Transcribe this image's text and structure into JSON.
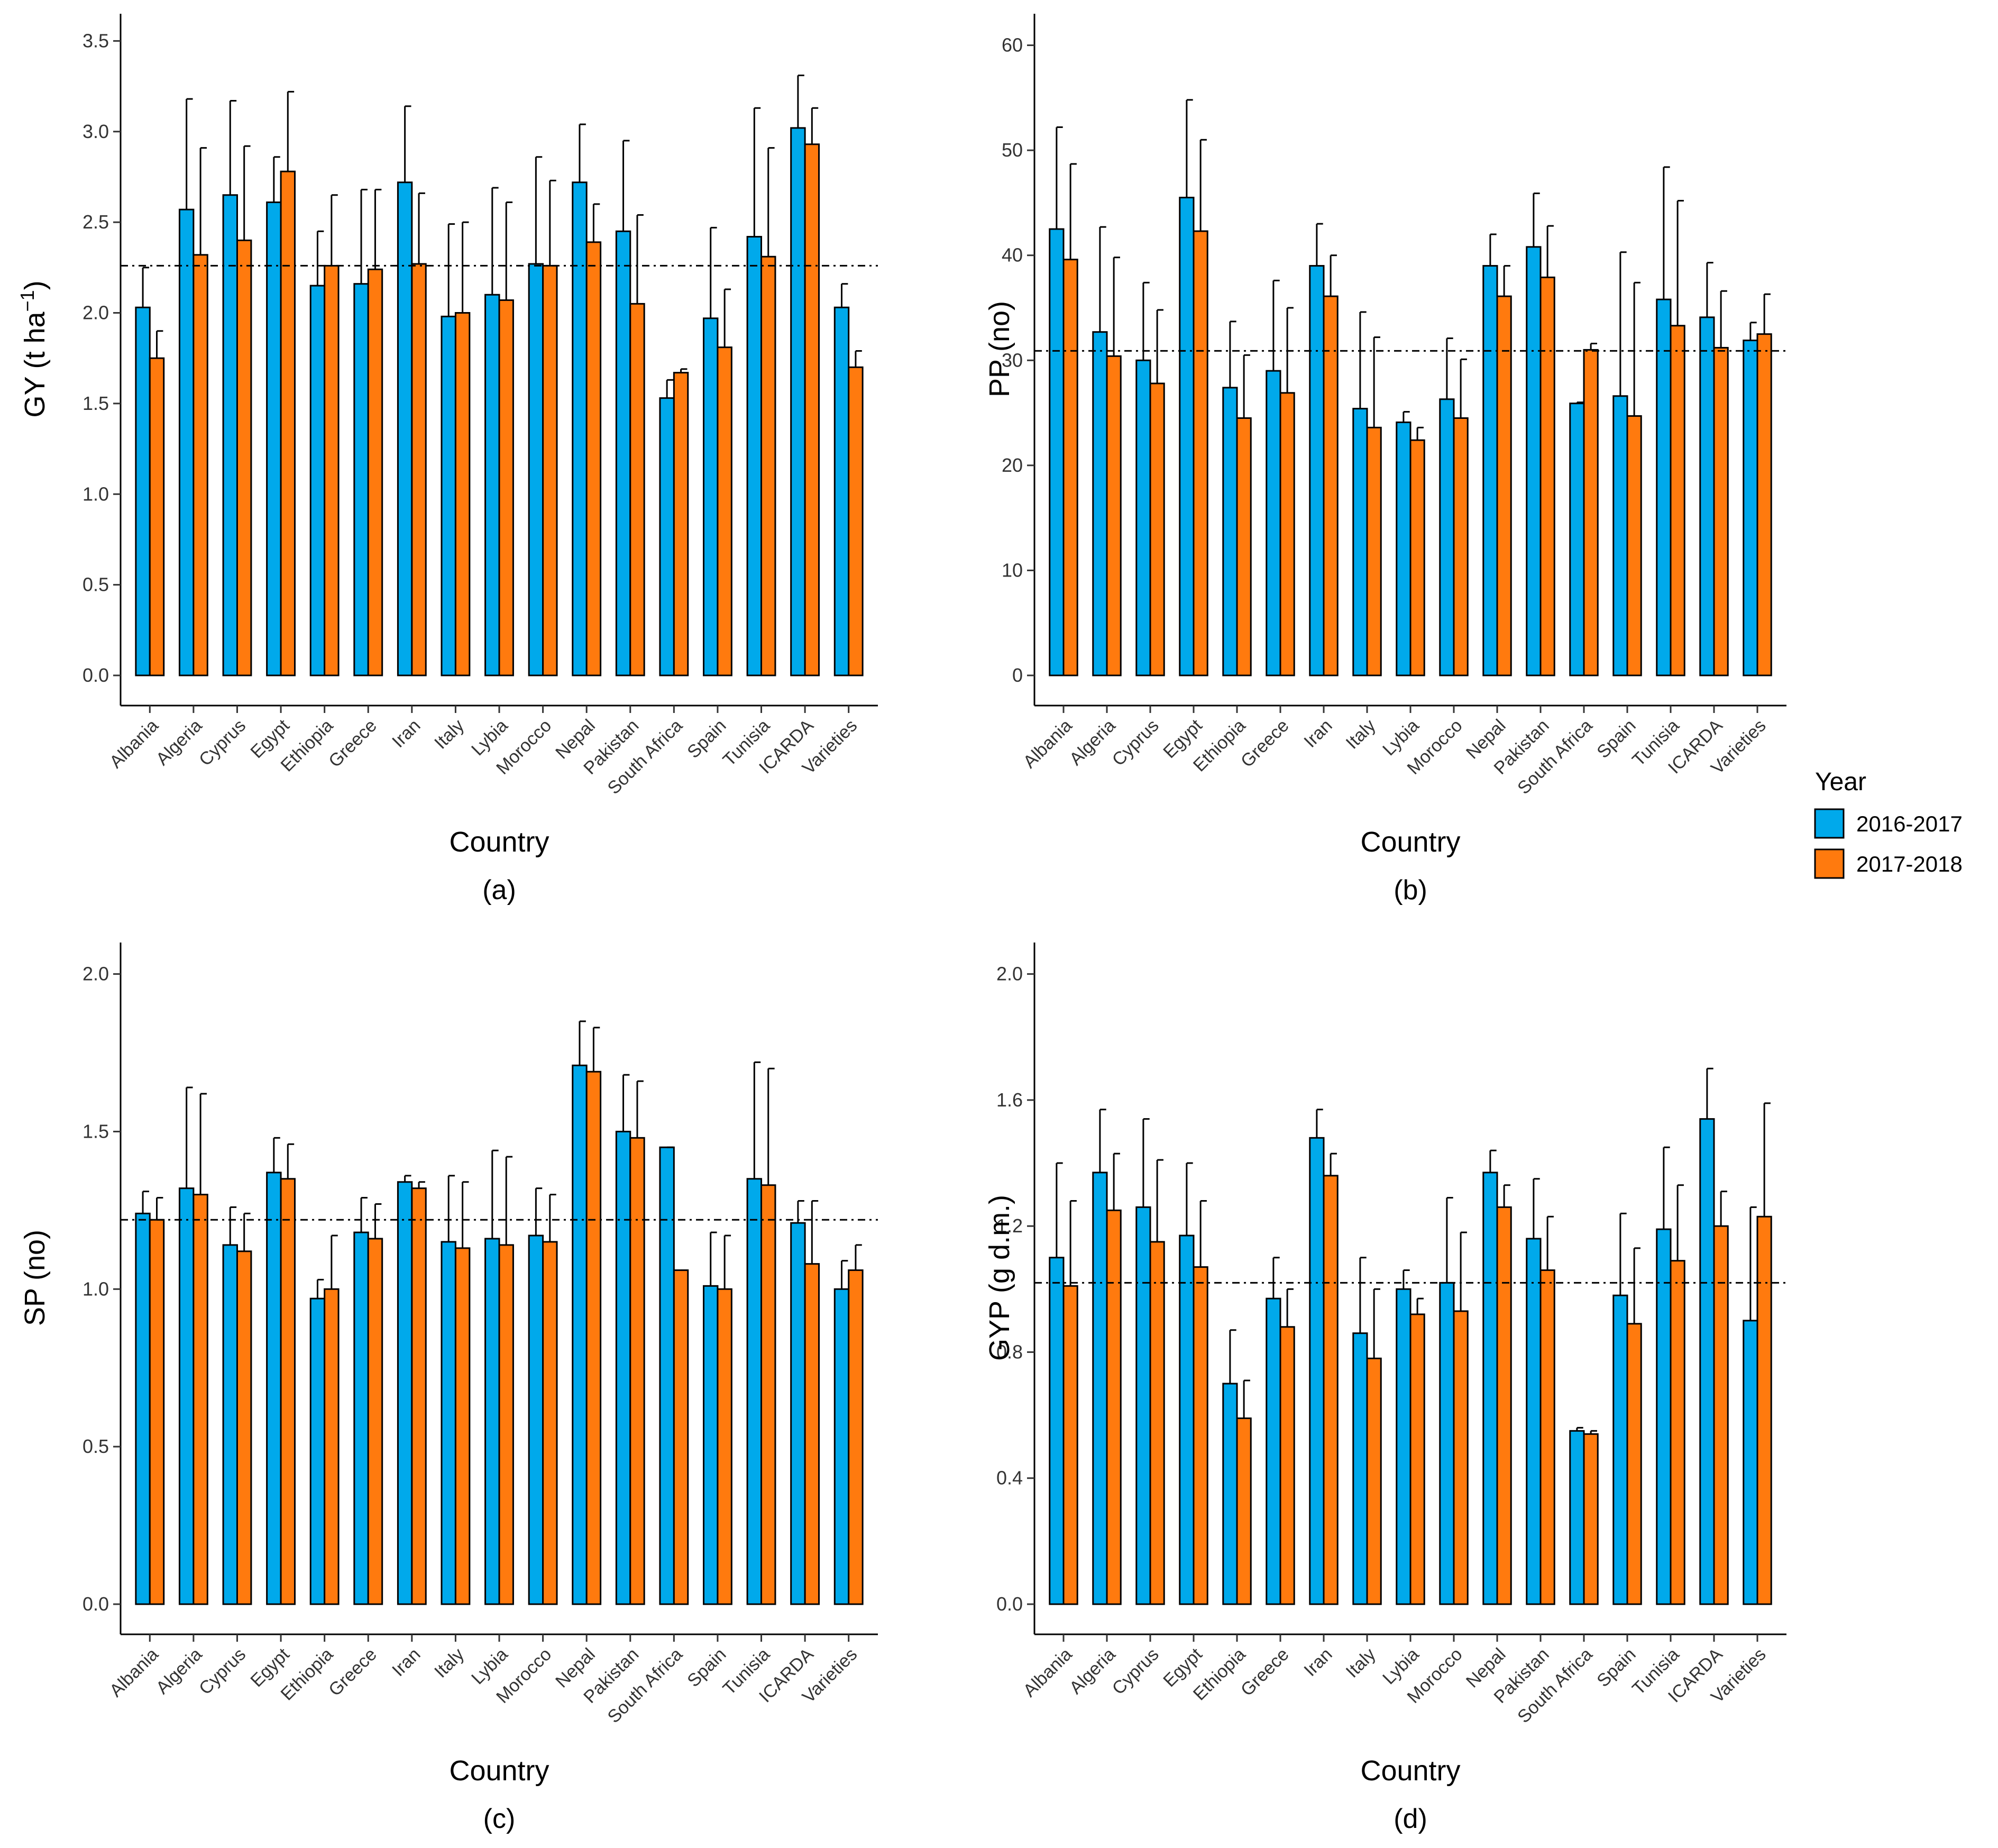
{
  "colors": {
    "y2016": "#00A9EB",
    "y2017": "#FF7A0E",
    "ref": "#000000"
  },
  "legend": {
    "title": "Year",
    "items": [
      "2016-2017",
      "2017-2018"
    ]
  },
  "chart_data": [
    {
      "type": "bar",
      "panel": "(a)",
      "xlabel": "Country",
      "ylabel": "GY  (t ha",
      "ylabel_sup": "−1",
      "ylabel_close": ")",
      "ylim": [
        0,
        3.65
      ],
      "ticks": [
        0,
        0.5,
        1.0,
        1.5,
        2.0,
        2.5,
        3.0,
        3.5
      ],
      "decimals": 1,
      "mean_line": 2.26,
      "categories": [
        "Albania",
        "Algeria",
        "Cyprus",
        "Egypt",
        "Ethiopia",
        "Greece",
        "Iran",
        "Italy",
        "Lybia",
        "Morocco",
        "Nepal",
        "Pakistan",
        "South Africa",
        "Spain",
        "Tunisia",
        "ICARDA",
        "Varieties"
      ],
      "series": [
        {
          "name": "2016-2017",
          "values": [
            2.03,
            2.57,
            2.65,
            2.61,
            2.15,
            2.16,
            2.72,
            1.98,
            2.1,
            2.27,
            2.72,
            2.45,
            1.53,
            1.97,
            2.42,
            3.02,
            2.03
          ],
          "err": [
            2.25,
            3.18,
            3.17,
            2.86,
            2.45,
            2.68,
            3.14,
            2.49,
            2.69,
            2.86,
            3.04,
            2.95,
            1.63,
            2.47,
            3.13,
            3.31,
            2.16
          ]
        },
        {
          "name": "2017-2018",
          "values": [
            1.75,
            2.32,
            2.4,
            2.78,
            2.26,
            2.24,
            2.27,
            2.0,
            2.07,
            2.26,
            2.39,
            2.05,
            1.67,
            1.81,
            2.31,
            2.93,
            1.7
          ],
          "err": [
            1.9,
            2.91,
            2.92,
            3.22,
            2.65,
            2.68,
            2.66,
            2.5,
            2.61,
            2.73,
            2.6,
            2.54,
            1.69,
            2.13,
            2.91,
            3.13,
            1.79
          ]
        }
      ]
    },
    {
      "type": "bar",
      "panel": "(b)",
      "xlabel": "Country",
      "ylabel": "PP (no)",
      "ylim": [
        0,
        63
      ],
      "ticks": [
        0,
        10,
        20,
        30,
        40,
        50,
        60
      ],
      "decimals": 0,
      "mean_line": 30.9,
      "categories": [
        "Albania",
        "Algeria",
        "Cyprus",
        "Egypt",
        "Ethiopia",
        "Greece",
        "Iran",
        "Italy",
        "Lybia",
        "Morocco",
        "Nepal",
        "Pakistan",
        "South Africa",
        "Spain",
        "Tunisia",
        "ICARDA",
        "Varieties"
      ],
      "series": [
        {
          "name": "2016-2017",
          "values": [
            42.5,
            32.7,
            30.0,
            45.5,
            27.4,
            29.0,
            39.0,
            25.4,
            24.1,
            26.3,
            39.0,
            40.8,
            25.9,
            26.6,
            35.8,
            34.1,
            31.9
          ],
          "err": [
            52.2,
            42.7,
            37.4,
            54.8,
            33.7,
            37.6,
            43.0,
            34.6,
            25.1,
            32.1,
            42.0,
            45.9,
            26.0,
            40.3,
            48.4,
            39.3,
            33.6
          ]
        },
        {
          "name": "2017-2018",
          "values": [
            39.6,
            30.4,
            27.8,
            42.3,
            24.5,
            26.9,
            36.1,
            23.6,
            22.4,
            24.5,
            36.1,
            37.9,
            31.0,
            24.7,
            33.3,
            31.2,
            32.5
          ],
          "err": [
            48.7,
            39.8,
            34.8,
            51.0,
            30.5,
            35.0,
            40.0,
            32.2,
            23.6,
            30.1,
            39.0,
            42.8,
            31.6,
            37.4,
            45.2,
            36.6,
            36.3
          ]
        }
      ]
    },
    {
      "type": "bar",
      "panel": "(c)",
      "xlabel": "Country",
      "ylabel": "SP (no)",
      "ylim": [
        0,
        2.1
      ],
      "ticks": [
        0,
        0.5,
        1.0,
        1.5,
        2.0
      ],
      "decimals": 1,
      "mean_line": 1.22,
      "categories": [
        "Albania",
        "Algeria",
        "Cyprus",
        "Egypt",
        "Ethiopia",
        "Greece",
        "Iran",
        "Italy",
        "Lybia",
        "Morocco",
        "Nepal",
        "Pakistan",
        "South Africa",
        "Spain",
        "Tunisia",
        "ICARDA",
        "Varieties"
      ],
      "series": [
        {
          "name": "2016-2017",
          "values": [
            1.24,
            1.32,
            1.14,
            1.37,
            0.97,
            1.18,
            1.34,
            1.15,
            1.16,
            1.17,
            1.71,
            1.5,
            1.45,
            1.01,
            1.35,
            1.21,
            1.0
          ],
          "err": [
            1.31,
            1.64,
            1.26,
            1.48,
            1.03,
            1.29,
            1.36,
            1.36,
            1.44,
            1.32,
            1.85,
            1.68,
            1.45,
            1.18,
            1.72,
            1.28,
            1.09
          ]
        },
        {
          "name": "2017-2018",
          "values": [
            1.22,
            1.3,
            1.12,
            1.35,
            1.0,
            1.16,
            1.32,
            1.13,
            1.14,
            1.15,
            1.69,
            1.48,
            1.06,
            1.0,
            1.33,
            1.08,
            1.06
          ],
          "err": [
            1.29,
            1.62,
            1.24,
            1.46,
            1.17,
            1.27,
            1.34,
            1.34,
            1.42,
            1.3,
            1.83,
            1.66,
            1.06,
            1.17,
            1.7,
            1.28,
            1.14
          ]
        }
      ]
    },
    {
      "type": "bar",
      "panel": "(d)",
      "xlabel": "Country",
      "ylabel": "GYP (g d.m.)",
      "ylim": [
        0,
        2.1
      ],
      "ticks": [
        0,
        0.4,
        0.8,
        1.2,
        1.6,
        2.0
      ],
      "decimals": 1,
      "mean_line": 1.02,
      "categories": [
        "Albania",
        "Algeria",
        "Cyprus",
        "Egypt",
        "Ethiopia",
        "Greece",
        "Iran",
        "Italy",
        "Lybia",
        "Morocco",
        "Nepal",
        "Pakistan",
        "South Africa",
        "Spain",
        "Tunisia",
        "ICARDA",
        "Varieties"
      ],
      "series": [
        {
          "name": "2016-2017",
          "values": [
            1.1,
            1.37,
            1.26,
            1.17,
            0.7,
            0.97,
            1.48,
            0.86,
            1.0,
            1.02,
            1.37,
            1.16,
            0.55,
            0.98,
            1.19,
            1.54,
            0.9
          ],
          "err": [
            1.4,
            1.57,
            1.54,
            1.4,
            0.87,
            1.1,
            1.57,
            1.1,
            1.06,
            1.29,
            1.44,
            1.35,
            0.56,
            1.24,
            1.45,
            1.7,
            1.26
          ]
        },
        {
          "name": "2017-2018",
          "values": [
            1.01,
            1.25,
            1.15,
            1.07,
            0.59,
            0.88,
            1.36,
            0.78,
            0.92,
            0.93,
            1.26,
            1.06,
            0.54,
            0.89,
            1.09,
            1.2,
            1.23
          ],
          "err": [
            1.28,
            1.43,
            1.41,
            1.28,
            0.71,
            1.0,
            1.43,
            1.0,
            0.97,
            1.18,
            1.33,
            1.23,
            0.55,
            1.13,
            1.33,
            1.31,
            1.59
          ]
        }
      ]
    }
  ]
}
